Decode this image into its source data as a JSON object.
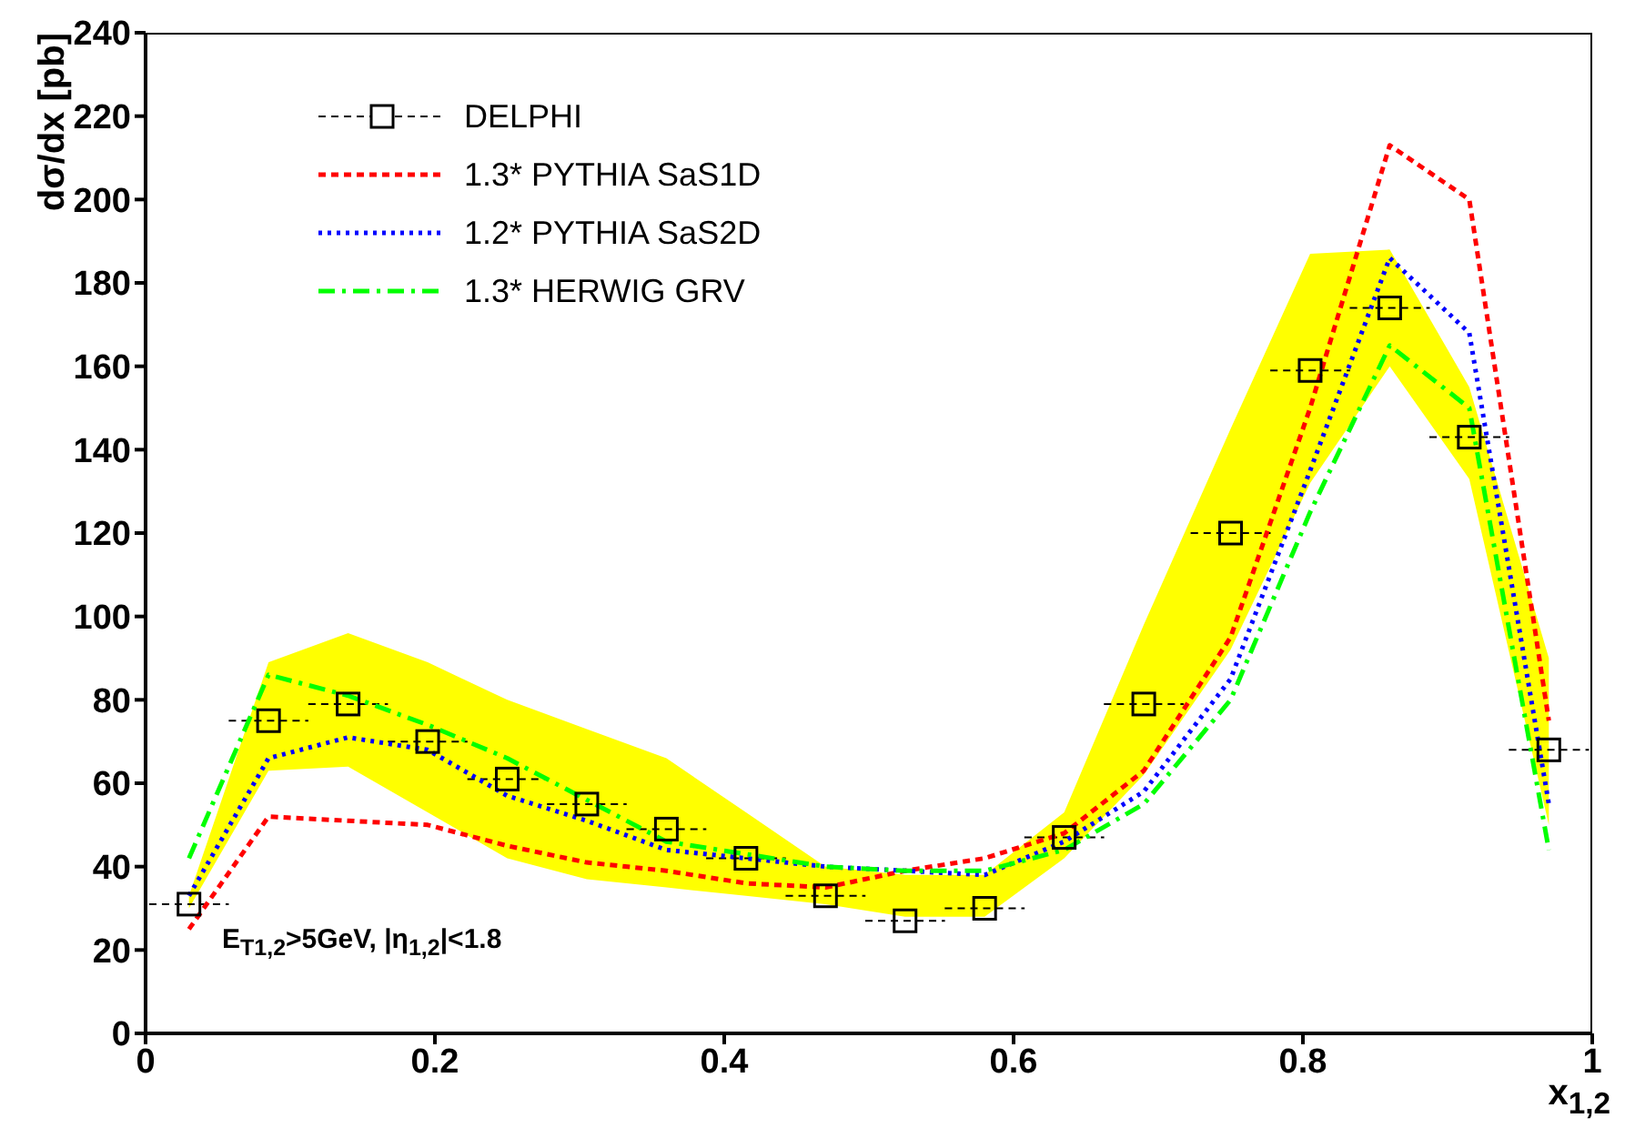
{
  "chart_data": {
    "type": "line",
    "xlabel": "x$_{1,2}$",
    "ylabel": "dσ/dx [pb]",
    "x": [
      0.03,
      0.085,
      0.14,
      0.195,
      0.25,
      0.305,
      0.36,
      0.415,
      0.47,
      0.525,
      0.58,
      0.635,
      0.69,
      0.75,
      0.805,
      0.86,
      0.915,
      0.97
    ],
    "series": [
      {
        "name": "DELPHI",
        "type": "scatter",
        "color": "#000000",
        "marker": "square",
        "line_style": "dashed",
        "values": [
          31,
          75,
          79,
          70,
          61,
          55,
          49,
          42,
          33,
          27,
          30,
          47,
          79,
          120,
          159,
          174,
          143,
          68
        ],
        "xerrors": [
          0.0275,
          0.0275,
          0.0275,
          0.0275,
          0.0275,
          0.0275,
          0.0275,
          0.0275,
          0.0275,
          0.0275,
          0.0275,
          0.0275,
          0.0275,
          0.0275,
          0.0275,
          0.0275,
          0.0275,
          0.0275
        ],
        "lower": [
          30,
          63,
          64,
          53,
          42,
          37,
          35,
          33,
          31,
          28,
          28,
          42,
          62,
          92,
          132,
          160,
          133,
          50
        ],
        "upper": [
          33,
          89,
          96,
          89,
          80,
          73,
          66,
          53,
          40,
          38,
          38,
          53,
          98,
          145,
          187,
          188,
          155,
          90
        ]
      },
      {
        "name": "1.3* PYTHIA SaS1D",
        "type": "line",
        "color": "#ff0000",
        "line_style": "dashed",
        "values": [
          25,
          52,
          51,
          50,
          45,
          41,
          39,
          36,
          35,
          39,
          42,
          48,
          63,
          95,
          150,
          213,
          200,
          75
        ]
      },
      {
        "name": "1.2* PYTHIA SaS2D",
        "type": "line",
        "color": "#0000ff",
        "line_style": "dotted",
        "values": [
          33,
          66,
          71,
          68,
          57,
          51,
          44,
          42,
          40,
          39,
          38,
          46,
          58,
          85,
          135,
          186,
          168,
          55
        ]
      },
      {
        "name": "1.3* HERWIG GRV",
        "type": "line",
        "color": "#00ff00",
        "line_style": "dashdot",
        "values": [
          42,
          86,
          81,
          74,
          66,
          56,
          46,
          43,
          40,
          39,
          39,
          44,
          55,
          80,
          125,
          165,
          150,
          44
        ]
      }
    ],
    "xlim": [
      0,
      1
    ],
    "xticks": [
      0,
      {
        "value": 0.2,
        "label": "0.2"
      },
      {
        "value": 0.4,
        "label": "0.4"
      },
      {
        "value": 0.6,
        "label": "0.6"
      },
      {
        "value": 0.8,
        "label": "0.8"
      },
      1
    ],
    "ylim": [
      0,
      240
    ],
    "yticks": [
      0,
      20,
      40,
      60,
      80,
      100,
      120,
      140,
      160,
      180,
      200,
      220,
      240
    ],
    "grid": false,
    "legend": "top left",
    "marker": "none",
    "annotations": [
      {
        "text": "E$_{T1,2}$>5GeV, |η$_{1,2}$|<1.8"
      }
    ]
  }
}
